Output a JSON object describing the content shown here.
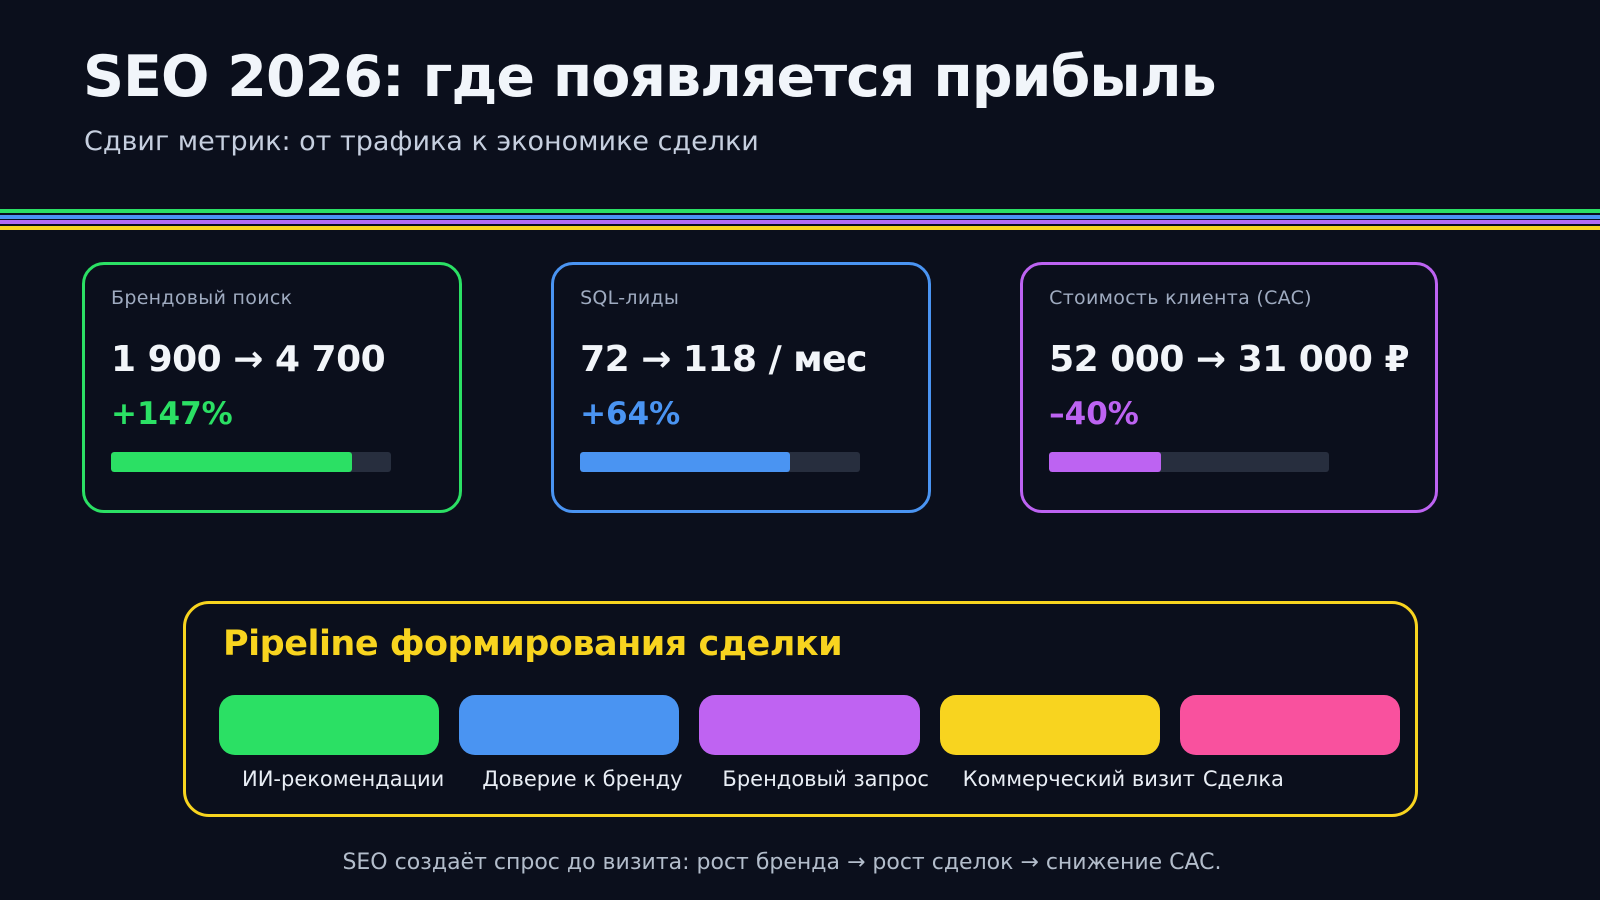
{
  "header": {
    "title": "SEO 2026: где появляется прибыль",
    "subtitle": "Сдвиг метрик: от трафика к экономике сделки"
  },
  "divider": {
    "stripe_colors": [
      "#2be064",
      "#4a94f2",
      "#b46af2",
      "#f8d41f"
    ]
  },
  "cards": [
    {
      "label": "Брендовый поиск",
      "value": "1 900 → 4 700",
      "delta": "+147%",
      "progress": 86,
      "accent": "#2be064",
      "track": "#272e3e"
    },
    {
      "label": "SQL-лиды",
      "value": "72 → 118 / мес",
      "delta": "+64%",
      "progress": 75,
      "accent": "#4a94f2",
      "track": "#272e3e"
    },
    {
      "label": "Стоимость клиента (CAC)",
      "value": "52 000 → 31 000 ₽",
      "delta": "–40%",
      "progress": 40,
      "accent": "#bd63f2",
      "track": "#272e3e"
    }
  ],
  "pipeline": {
    "title": "Pipeline формирования сделки",
    "accent": "#f8d41f",
    "stages": [
      {
        "label": "ИИ-рекомендации",
        "color": "#2be064"
      },
      {
        "label": "Доверие к бренду",
        "color": "#4a94f2"
      },
      {
        "label": "Брендовый запрос",
        "color": "#bf63f2"
      },
      {
        "label": "Коммерческий визит",
        "color": "#f8d41f"
      },
      {
        "label": "Сделка",
        "color": "#f9519e"
      }
    ]
  },
  "footer": {
    "note": "SEO создаёт спрос до визита: рост бренда → рост сделок → снижение CAC."
  }
}
